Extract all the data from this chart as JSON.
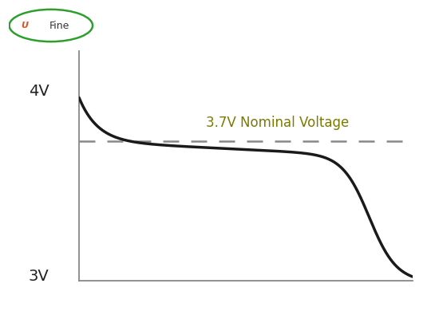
{
  "title": "",
  "ylabel": "",
  "xlabel": "",
  "ylim": [
    3.0,
    4.15
  ],
  "xlim": [
    0,
    1
  ],
  "nominal_voltage": 3.7,
  "nominal_label": "3.7V Nominal Voltage",
  "nominal_label_color": "#7b7b00",
  "label_4v": "4V",
  "label_3v": "3V",
  "curve_color": "#1a1a1a",
  "dashed_color": "#888888",
  "axis_color": "#888888",
  "background_color": "#ffffff",
  "logo_border_color": "#2e9e2e",
  "logo_flame_color": "#e05020",
  "logo_text_color": "#333333"
}
